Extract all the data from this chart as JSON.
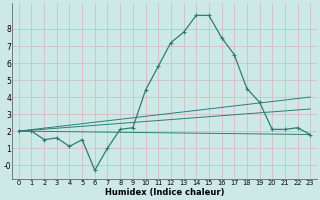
{
  "xlabel": "Humidex (Indice chaleur)",
  "bg_color": "#cce9e7",
  "grid_color": "#aad4d0",
  "line_color": "#2e7d72",
  "xlim": [
    -0.5,
    23.5
  ],
  "ylim": [
    -0.8,
    9.5
  ],
  "xticks": [
    0,
    1,
    2,
    3,
    4,
    5,
    6,
    7,
    8,
    9,
    10,
    11,
    12,
    13,
    14,
    15,
    16,
    17,
    18,
    19,
    20,
    21,
    22,
    23
  ],
  "yticks": [
    0,
    1,
    2,
    3,
    4,
    5,
    6,
    7,
    8
  ],
  "ytick_labels": [
    "-0",
    "1",
    "2",
    "3",
    "4",
    "5",
    "6",
    "7",
    "8"
  ],
  "main_x": [
    0,
    1,
    2,
    3,
    4,
    5,
    6,
    7,
    8,
    9,
    10,
    11,
    12,
    13,
    14,
    15,
    16,
    17,
    18,
    19,
    20,
    21,
    22,
    23
  ],
  "main_y": [
    2.0,
    2.0,
    1.5,
    1.6,
    1.1,
    1.5,
    -0.3,
    1.0,
    2.1,
    2.2,
    4.4,
    5.8,
    7.2,
    7.8,
    8.8,
    8.8,
    7.5,
    6.5,
    4.5,
    3.7,
    2.1,
    2.1,
    2.2,
    1.8
  ],
  "line1_x": [
    0,
    23
  ],
  "line1_y": [
    2.0,
    1.8
  ],
  "line2_x": [
    0,
    23
  ],
  "line2_y": [
    2.0,
    3.3
  ],
  "line3_x": [
    0,
    23
  ],
  "line3_y": [
    2.0,
    4.0
  ]
}
